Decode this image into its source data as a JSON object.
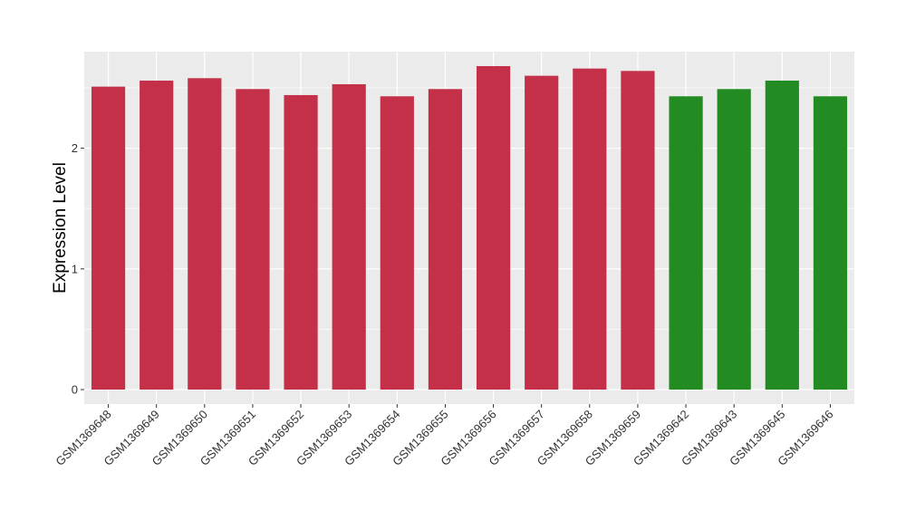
{
  "chart_data": {
    "type": "bar",
    "title": "",
    "xlabel": "",
    "ylabel": "Expression Level",
    "ylim": [
      -0.12,
      2.8
    ],
    "yticks": [
      0,
      1,
      2
    ],
    "grid": true,
    "legend": "none",
    "categories": [
      "GSM1369648",
      "GSM1369649",
      "GSM1369650",
      "GSM1369651",
      "GSM1369652",
      "GSM1369653",
      "GSM1369654",
      "GSM1369655",
      "GSM1369656",
      "GSM1369657",
      "GSM1369658",
      "GSM1369659",
      "GSM1369642",
      "GSM1369643",
      "GSM1369645",
      "GSM1369646"
    ],
    "values": [
      2.51,
      2.56,
      2.58,
      2.49,
      2.44,
      2.53,
      2.43,
      2.49,
      2.68,
      2.6,
      2.66,
      2.64,
      2.43,
      2.49,
      2.56,
      2.43
    ],
    "bar_colors": [
      "#c33048",
      "#c33048",
      "#c33048",
      "#c33048",
      "#c33048",
      "#c33048",
      "#c33048",
      "#c33048",
      "#c33048",
      "#c33048",
      "#c33048",
      "#c33048",
      "#228b22",
      "#228b22",
      "#228b22",
      "#228b22"
    ],
    "panel_background": "#ebebeb",
    "gridline_color": "#ffffff"
  }
}
